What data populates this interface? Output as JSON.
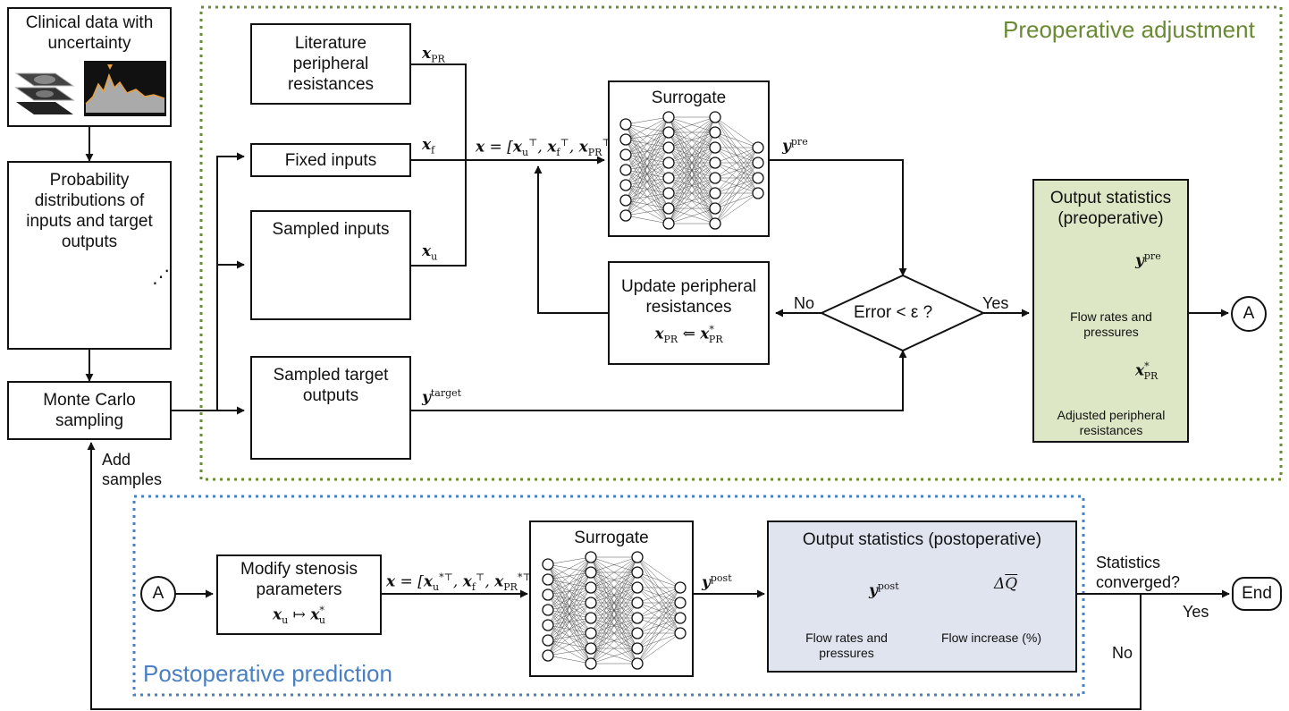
{
  "regions": {
    "preop_title": "Preoperative adjustment",
    "postop_title": "Postoperative prediction",
    "preop_color": "#6a8a33",
    "postop_color": "#4a7fc1"
  },
  "boxes": {
    "clinical": "Clinical data with uncertainty",
    "probability": "Probability distributions of inputs and target outputs",
    "monte_carlo": "Monte Carlo sampling",
    "literature": "Literature peripheral resistances",
    "fixed": "Fixed inputs",
    "sampled_inputs": "Sampled inputs",
    "sampled_targets": "Sampled target outputs",
    "surrogate_pre": "Surrogate",
    "surrogate_post": "Surrogate",
    "update": "Update peripheral resistances",
    "modify": "Modify stenosis parameters",
    "decision": "Error < ε ?"
  },
  "stats_pre": {
    "title": "Output statistics (preoperative)",
    "flow": "Flow rates and pressures",
    "adjusted": "Adjusted peripheral resistances",
    "fill": "#dde7c6"
  },
  "stats_post": {
    "title": "Output statistics (postoperative)",
    "flow": "Flow rates and pressures",
    "increase": "Flow increase (%)",
    "fill": "#dfe4ef"
  },
  "connectors": {
    "a1": "A",
    "a2": "A",
    "end": "End"
  },
  "edge_labels": {
    "no_update": "No",
    "yes_stats": "Yes",
    "add_samples": "Add samples",
    "converged": "Statistics converged?",
    "yes_end": "Yes",
    "no_loop": "No"
  },
  "curve_colors": {
    "c1": "#c0504d",
    "c2": "#92c050",
    "c3": "#8e5fb0",
    "y_pre": "#1f77c4",
    "x_pr": "#e8731c",
    "y_post": "#0c2466",
    "dq": "#ee1111"
  },
  "icons": [
    "medical-image-stack-icon",
    "doppler-waveform-icon",
    "neural-network-icon",
    "probability-curve-icon"
  ]
}
